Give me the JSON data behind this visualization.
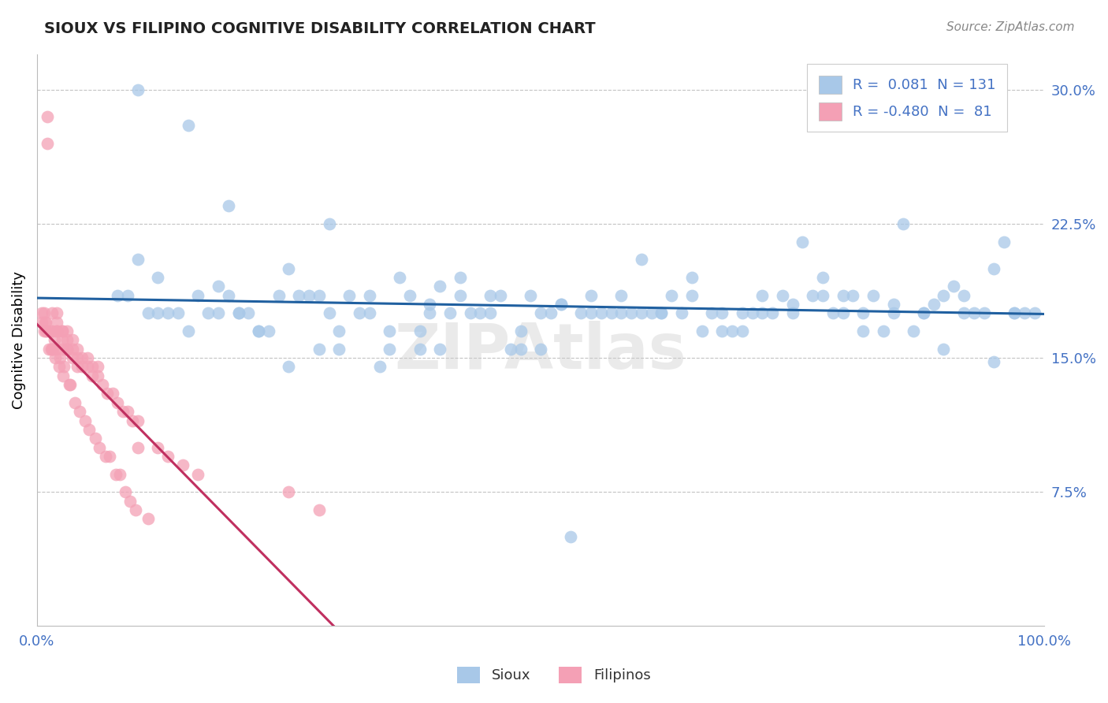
{
  "title": "SIOUX VS FILIPINO COGNITIVE DISABILITY CORRELATION CHART",
  "source": "Source: ZipAtlas.com",
  "ylabel": "Cognitive Disability",
  "right_yticks": [
    "7.5%",
    "15.0%",
    "22.5%",
    "30.0%"
  ],
  "right_ytick_vals": [
    0.075,
    0.15,
    0.225,
    0.3
  ],
  "xlim": [
    0.0,
    1.0
  ],
  "ylim": [
    0.0,
    0.32
  ],
  "sioux_N": 131,
  "filipino_N": 81,
  "blue_color": "#a8c8e8",
  "pink_color": "#f4a0b5",
  "blue_line_color": "#2060a0",
  "pink_line_color": "#c03060",
  "legend_blue_R": "0.081",
  "legend_pink_R": "-0.480",
  "sioux_x": [
    0.08,
    0.12,
    0.18,
    0.22,
    0.1,
    0.15,
    0.25,
    0.3,
    0.35,
    0.4,
    0.45,
    0.5,
    0.55,
    0.6,
    0.65,
    0.7,
    0.75,
    0.8,
    0.85,
    0.9,
    0.95,
    0.2,
    0.28,
    0.33,
    0.38,
    0.42,
    0.48,
    0.52,
    0.58,
    0.62,
    0.68,
    0.72,
    0.78,
    0.82,
    0.88,
    0.92,
    0.97,
    0.15,
    0.25,
    0.35,
    0.45,
    0.55,
    0.65,
    0.75,
    0.85,
    0.95,
    0.1,
    0.2,
    0.3,
    0.4,
    0.5,
    0.6,
    0.7,
    0.8,
    0.9,
    0.12,
    0.22,
    0.32,
    0.42,
    0.52,
    0.62,
    0.72,
    0.82,
    0.92,
    0.17,
    0.27,
    0.37,
    0.47,
    0.57,
    0.67,
    0.77,
    0.87,
    0.97,
    0.14,
    0.24,
    0.34,
    0.44,
    0.54,
    0.64,
    0.74,
    0.84,
    0.94,
    0.19,
    0.29,
    0.39,
    0.49,
    0.59,
    0.69,
    0.79,
    0.89,
    0.99,
    0.16,
    0.26,
    0.36,
    0.46,
    0.56,
    0.66,
    0.76,
    0.86,
    0.96,
    0.11,
    0.21,
    0.31,
    0.41,
    0.51,
    0.61,
    0.71,
    0.81,
    0.91,
    0.13,
    0.23,
    0.33,
    0.43,
    0.53,
    0.63,
    0.73,
    0.83,
    0.93,
    0.18,
    0.28,
    0.38,
    0.48,
    0.58,
    0.68,
    0.78,
    0.88,
    0.98,
    0.09,
    0.19,
    0.29,
    0.39
  ],
  "sioux_y": [
    0.185,
    0.175,
    0.19,
    0.165,
    0.3,
    0.28,
    0.2,
    0.155,
    0.165,
    0.19,
    0.185,
    0.155,
    0.175,
    0.205,
    0.195,
    0.165,
    0.18,
    0.185,
    0.175,
    0.185,
    0.2,
    0.175,
    0.155,
    0.175,
    0.165,
    0.185,
    0.155,
    0.18,
    0.175,
    0.175,
    0.165,
    0.175,
    0.195,
    0.165,
    0.175,
    0.185,
    0.175,
    0.165,
    0.145,
    0.155,
    0.175,
    0.185,
    0.185,
    0.175,
    0.18,
    0.148,
    0.205,
    0.175,
    0.165,
    0.155,
    0.175,
    0.175,
    0.175,
    0.175,
    0.155,
    0.195,
    0.165,
    0.175,
    0.195,
    0.18,
    0.175,
    0.185,
    0.175,
    0.175,
    0.175,
    0.185,
    0.185,
    0.155,
    0.175,
    0.175,
    0.185,
    0.165,
    0.175,
    0.175,
    0.185,
    0.145,
    0.175,
    0.175,
    0.175,
    0.185,
    0.165,
    0.175,
    0.185,
    0.175,
    0.175,
    0.185,
    0.175,
    0.165,
    0.175,
    0.18,
    0.175,
    0.185,
    0.185,
    0.195,
    0.185,
    0.175,
    0.165,
    0.215,
    0.225,
    0.215,
    0.175,
    0.175,
    0.185,
    0.175,
    0.175,
    0.175,
    0.175,
    0.185,
    0.19,
    0.175,
    0.165,
    0.185,
    0.175,
    0.05,
    0.185,
    0.175,
    0.185,
    0.175,
    0.175,
    0.185,
    0.155,
    0.165,
    0.185,
    0.175,
    0.185,
    0.175,
    0.175,
    0.185,
    0.235,
    0.225,
    0.18
  ],
  "filipino_x": [
    0.005,
    0.005,
    0.007,
    0.007,
    0.008,
    0.009,
    0.009,
    0.01,
    0.01,
    0.01,
    0.012,
    0.013,
    0.014,
    0.015,
    0.015,
    0.015,
    0.016,
    0.017,
    0.018,
    0.019,
    0.02,
    0.02,
    0.02,
    0.02,
    0.022,
    0.023,
    0.025,
    0.025,
    0.025,
    0.025,
    0.026,
    0.027,
    0.03,
    0.03,
    0.03,
    0.03,
    0.032,
    0.033,
    0.035,
    0.035,
    0.035,
    0.038,
    0.04,
    0.04,
    0.04,
    0.042,
    0.045,
    0.045,
    0.048,
    0.05,
    0.05,
    0.052,
    0.055,
    0.055,
    0.058,
    0.06,
    0.06,
    0.062,
    0.065,
    0.068,
    0.07,
    0.072,
    0.075,
    0.078,
    0.08,
    0.082,
    0.085,
    0.088,
    0.09,
    0.092,
    0.095,
    0.098,
    0.1,
    0.1,
    0.11,
    0.12,
    0.13,
    0.145,
    0.16,
    0.25,
    0.28
  ],
  "filipino_y": [
    0.175,
    0.17,
    0.165,
    0.175,
    0.17,
    0.165,
    0.17,
    0.165,
    0.285,
    0.27,
    0.155,
    0.165,
    0.155,
    0.165,
    0.155,
    0.175,
    0.155,
    0.16,
    0.15,
    0.155,
    0.165,
    0.165,
    0.17,
    0.175,
    0.145,
    0.15,
    0.165,
    0.155,
    0.16,
    0.165,
    0.14,
    0.145,
    0.155,
    0.155,
    0.16,
    0.165,
    0.135,
    0.135,
    0.15,
    0.155,
    0.16,
    0.125,
    0.145,
    0.15,
    0.155,
    0.12,
    0.145,
    0.15,
    0.115,
    0.145,
    0.15,
    0.11,
    0.14,
    0.145,
    0.105,
    0.14,
    0.145,
    0.1,
    0.135,
    0.095,
    0.13,
    0.095,
    0.13,
    0.085,
    0.125,
    0.085,
    0.12,
    0.075,
    0.12,
    0.07,
    0.115,
    0.065,
    0.115,
    0.1,
    0.06,
    0.1,
    0.095,
    0.09,
    0.085,
    0.075,
    0.065
  ]
}
